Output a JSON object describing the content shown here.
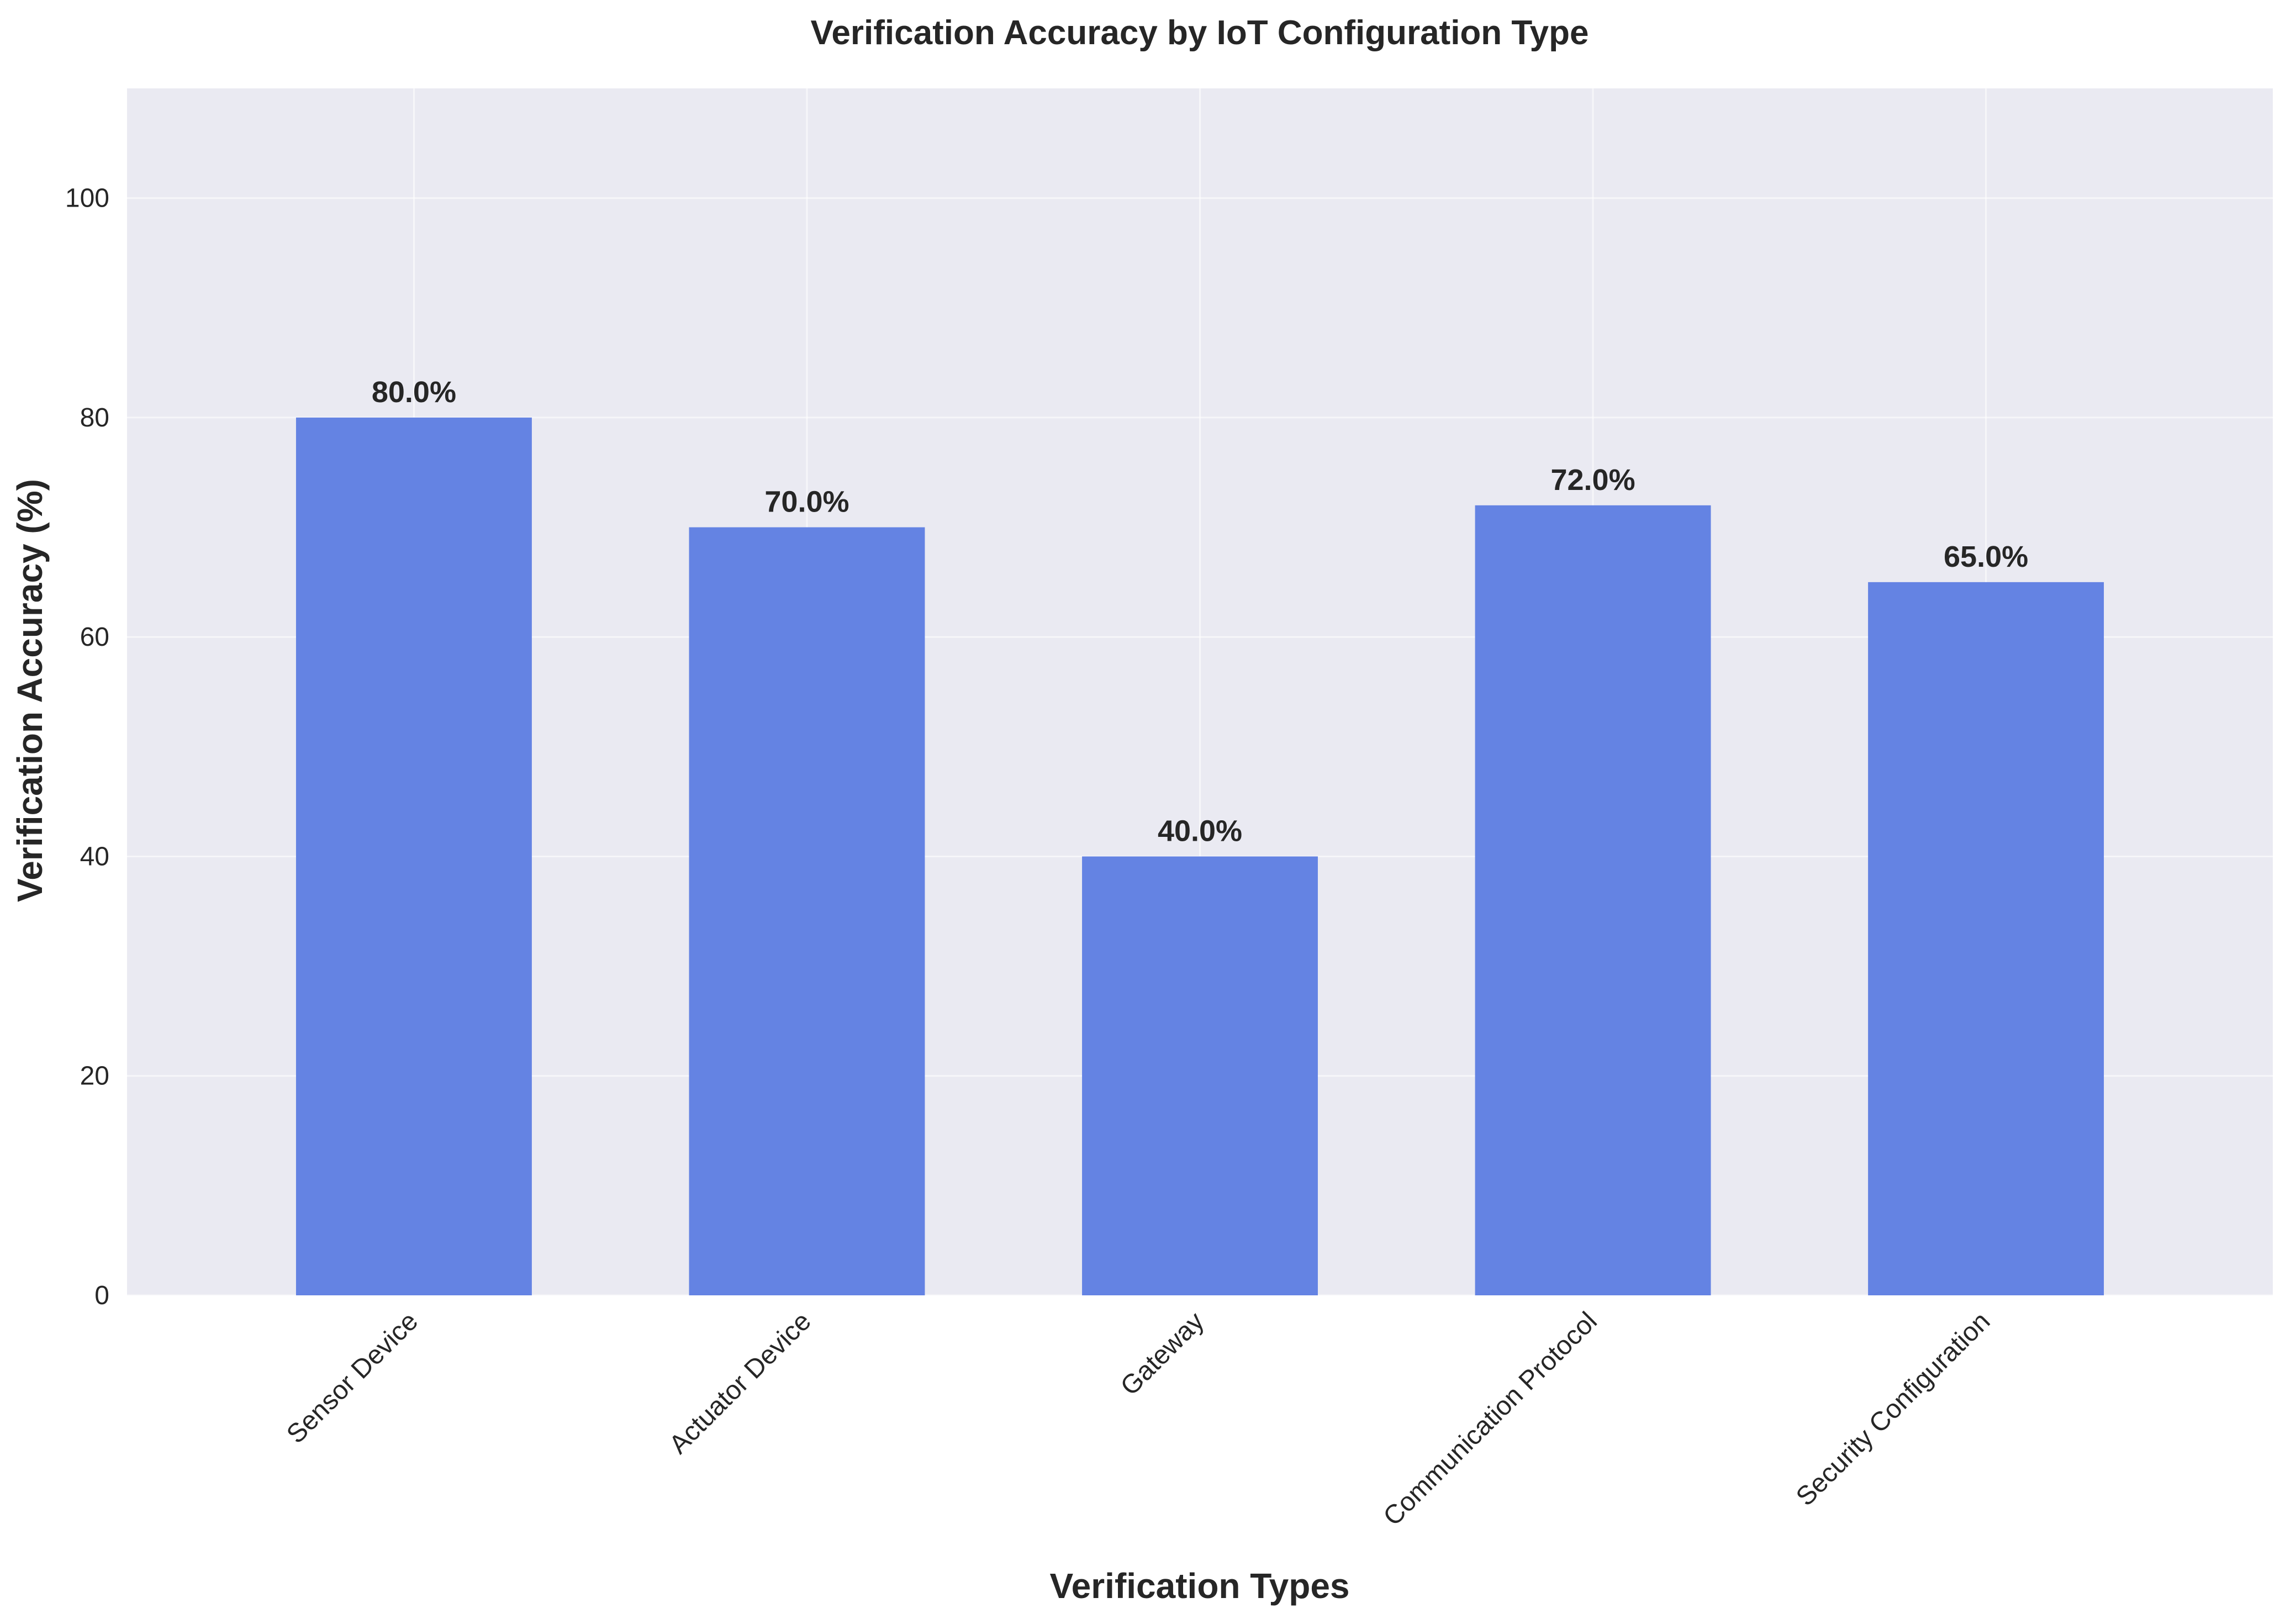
{
  "chart_data": {
    "type": "bar",
    "title": "Verification Accuracy by IoT Configuration Type",
    "xlabel": "Verification Types",
    "ylabel": "Verification Accuracy (%)",
    "categories": [
      "Sensor Device",
      "Actuator Device",
      "Gateway",
      "Communication Protocol",
      "Security Configuration"
    ],
    "values": [
      80.0,
      70.0,
      40.0,
      72.0,
      65.0
    ],
    "data_labels": [
      "80.0%",
      "70.0%",
      "40.0%",
      "72.0%",
      "65.0%"
    ],
    "yticks": [
      0,
      20,
      40,
      60,
      80,
      100
    ],
    "ylim": [
      0,
      110
    ],
    "grid": true,
    "legend": "none"
  },
  "colors": {
    "bar": "#6483e3",
    "plot_background": "#eaeaf2",
    "text": "#262626"
  }
}
